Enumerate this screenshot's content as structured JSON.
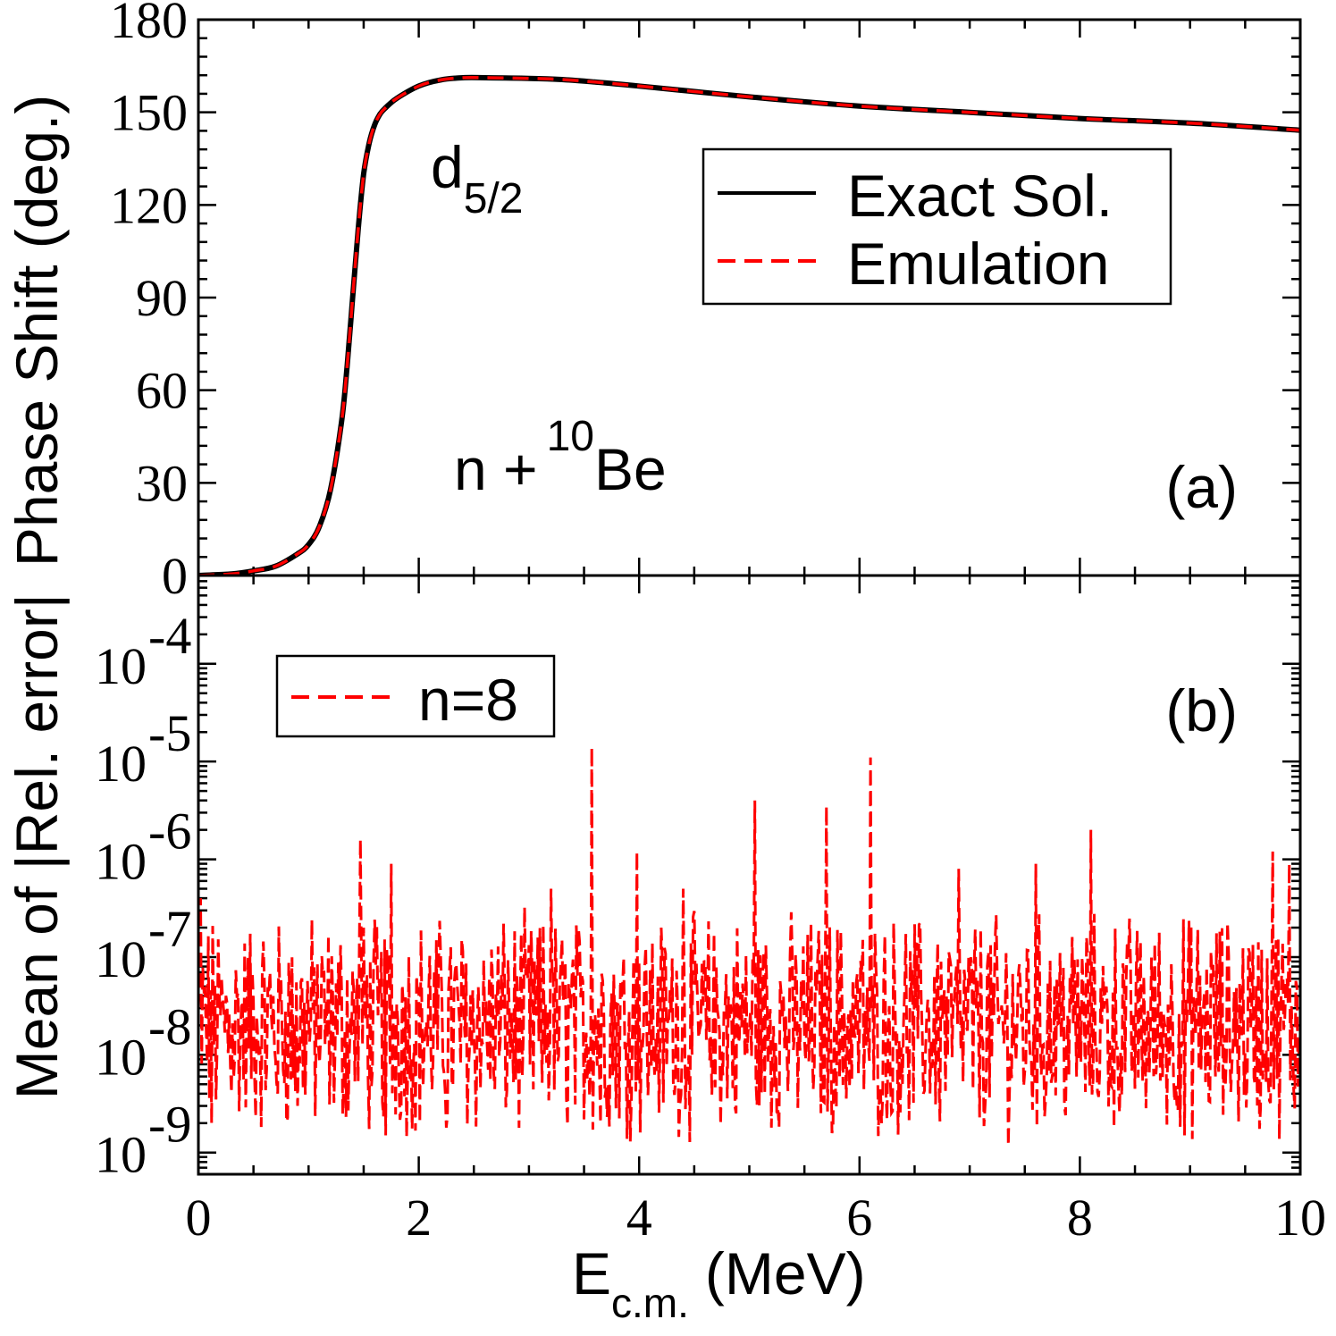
{
  "figure": {
    "ylabel_shared": "Mean of |Rel. error|  Phase Shift (deg.)",
    "ylabel_parts": [
      "Mean of |Rel. error|",
      "Phase Shift (deg.)"
    ],
    "xlabel_main": "E",
    "xlabel_sub": "c.m.",
    "xlabel_unit": "(MeV)"
  },
  "chart_data": [
    {
      "panel": "(a)",
      "type": "line",
      "xlim": [
        0,
        10
      ],
      "ylim": [
        0,
        180
      ],
      "xticks": [
        0,
        2,
        4,
        6,
        8,
        10
      ],
      "yticks": [
        0,
        30,
        60,
        90,
        120,
        150,
        180
      ],
      "ytick_labels": [
        "0",
        "30",
        "60",
        "90",
        "120",
        "150",
        "180"
      ],
      "annotations": {
        "state_main": "d",
        "state_sub": "5/2",
        "reaction_prefix": "n +",
        "reaction_sup": "10",
        "reaction_element": "Be",
        "panel_label": "(a)"
      },
      "legend": {
        "position": "upper-right",
        "entries": [
          "Exact Sol.",
          "Emulation"
        ]
      },
      "series": [
        {
          "name": "Exact Sol.",
          "color": "#000000",
          "style": "solid",
          "x": [
            0,
            0.3,
            0.5,
            0.7,
            0.9,
            1.0,
            1.1,
            1.2,
            1.3,
            1.35,
            1.4,
            1.45,
            1.5,
            1.55,
            1.6,
            1.65,
            1.7,
            1.8,
            2.0,
            2.2,
            2.4,
            2.6,
            3.0,
            3.3,
            3.6,
            4.0,
            5.0,
            6.0,
            7.0,
            8.0,
            9.0,
            10.0
          ],
          "y": [
            0,
            0.5,
            1.5,
            3,
            7,
            10,
            16,
            28,
            50,
            68,
            90,
            112,
            130,
            140,
            146,
            149.5,
            151.5,
            154.5,
            158.5,
            160.5,
            161.2,
            161.2,
            161.0,
            160.6,
            159.8,
            158.5,
            155,
            152,
            150,
            148,
            146.5,
            144.2
          ]
        },
        {
          "name": "Emulation",
          "color": "#ff0000",
          "style": "dashed",
          "x": [
            0,
            0.3,
            0.5,
            0.7,
            0.9,
            1.0,
            1.1,
            1.2,
            1.3,
            1.35,
            1.4,
            1.45,
            1.5,
            1.55,
            1.6,
            1.65,
            1.7,
            1.8,
            2.0,
            2.2,
            2.4,
            2.6,
            3.0,
            3.3,
            3.6,
            4.0,
            5.0,
            6.0,
            7.0,
            8.0,
            9.0,
            10.0
          ],
          "y": [
            0,
            0.5,
            1.5,
            3,
            7,
            10,
            16,
            28,
            50,
            68,
            90,
            112,
            130,
            140,
            146,
            149.5,
            151.5,
            154.5,
            158.5,
            160.5,
            161.2,
            161.2,
            161.0,
            160.6,
            159.8,
            158.5,
            155,
            152,
            150,
            148,
            146.5,
            144.2
          ]
        }
      ]
    },
    {
      "panel": "(b)",
      "type": "line",
      "yscale": "log",
      "xlim": [
        0,
        10
      ],
      "ylim": [
        6e-10,
        0.0008
      ],
      "xticks": [
        0,
        2,
        4,
        6,
        8,
        10
      ],
      "xtick_labels": [
        "0",
        "2",
        "4",
        "6",
        "8",
        "10"
      ],
      "yticks": [
        1e-09,
        1e-08,
        1e-07,
        1e-06,
        1e-05,
        0.0001
      ],
      "ytick_base": "10",
      "ytick_exponents": [
        "-9",
        "-8",
        "-7",
        "-6",
        "-5",
        "-4"
      ],
      "annotations": {
        "panel_label": "(b)"
      },
      "legend": {
        "position": "upper-left",
        "entries": [
          "n=8"
        ]
      },
      "series": [
        {
          "name": "n=8",
          "color": "#ff0000",
          "style": "dashed",
          "baseline": 2e-08,
          "spikes": [
            {
              "x": 0.02,
              "y": 4e-07
            },
            {
              "x": 0.12,
              "y": 2e-09
            },
            {
              "x": 0.9,
              "y": 3e-09
            },
            {
              "x": 1.47,
              "y": 1.6e-06
            },
            {
              "x": 1.75,
              "y": 9e-07
            },
            {
              "x": 1.7,
              "y": 1.5e-09
            },
            {
              "x": 2.25,
              "y": 1.8e-09
            },
            {
              "x": 3.2,
              "y": 5e-07
            },
            {
              "x": 3.57,
              "y": 1.4e-05
            },
            {
              "x": 3.65,
              "y": 2e-09
            },
            {
              "x": 3.98,
              "y": 1.2e-06
            },
            {
              "x": 4.4,
              "y": 5e-07
            },
            {
              "x": 5.05,
              "y": 4e-06
            },
            {
              "x": 5.2,
              "y": 1.8e-09
            },
            {
              "x": 5.7,
              "y": 3.5e-06
            },
            {
              "x": 6.1,
              "y": 1.1e-05
            },
            {
              "x": 6.2,
              "y": 2e-09
            },
            {
              "x": 6.9,
              "y": 8e-07
            },
            {
              "x": 7.6,
              "y": 9e-07
            },
            {
              "x": 8.1,
              "y": 2e-06
            },
            {
              "x": 8.95,
              "y": 1.5e-09
            },
            {
              "x": 9.75,
              "y": 1.2e-06
            },
            {
              "x": 9.9,
              "y": 9e-07
            }
          ]
        }
      ]
    }
  ]
}
